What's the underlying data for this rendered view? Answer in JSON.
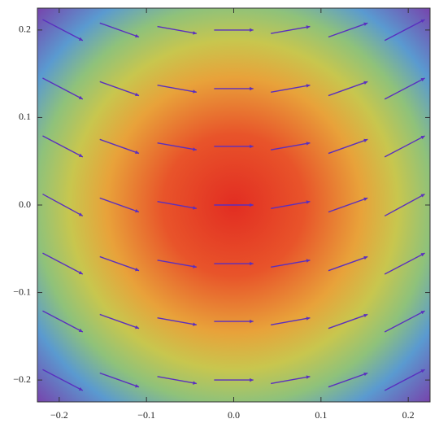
{
  "chart_data": {
    "type": "vector-field",
    "x": [
      -0.196,
      -0.131,
      -0.065,
      0,
      0.065,
      0.131,
      0.196
    ],
    "y": [
      0.2,
      0.133,
      0.067,
      0,
      -0.067,
      -0.133,
      -0.2
    ],
    "u": [
      [
        0.046,
        0.045,
        0.045,
        0.045,
        0.045,
        0.045,
        0.046
      ],
      [
        0.046,
        0.045,
        0.045,
        0.045,
        0.045,
        0.045,
        0.046
      ],
      [
        0.046,
        0.045,
        0.045,
        0.045,
        0.045,
        0.045,
        0.046
      ],
      [
        0.046,
        0.045,
        0.045,
        0.045,
        0.045,
        0.045,
        0.046
      ],
      [
        0.046,
        0.045,
        0.045,
        0.045,
        0.045,
        0.045,
        0.046
      ],
      [
        0.046,
        0.045,
        0.045,
        0.045,
        0.045,
        0.045,
        0.046
      ],
      [
        0.046,
        0.045,
        0.045,
        0.045,
        0.045,
        0.045,
        0.046
      ]
    ],
    "v": [
      [
        -0.024,
        -0.016,
        -0.008,
        0,
        0.008,
        0.016,
        0.024
      ],
      [
        -0.024,
        -0.016,
        -0.008,
        0,
        0.008,
        0.016,
        0.024
      ],
      [
        -0.024,
        -0.016,
        -0.008,
        0,
        0.008,
        0.016,
        0.024
      ],
      [
        -0.025,
        -0.016,
        -0.008,
        0,
        0.008,
        0.016,
        0.025
      ],
      [
        -0.024,
        -0.016,
        -0.008,
        0,
        0.008,
        0.016,
        0.024
      ],
      [
        -0.024,
        -0.016,
        -0.008,
        0,
        0.008,
        0.016,
        0.024
      ],
      [
        -0.024,
        -0.016,
        -0.008,
        0,
        0.008,
        0.016,
        0.024
      ]
    ],
    "color": "#5a2fbf",
    "xlim": [
      -0.225,
      0.225
    ],
    "ylim": [
      -0.225,
      0.225
    ],
    "xticks": [
      {
        "value": -0.2,
        "label": "−0.2"
      },
      {
        "value": -0.1,
        "label": "−0.1"
      },
      {
        "value": 0,
        "label": "0.0"
      },
      0.1,
      0.2
    ],
    "yticks": [
      {
        "value": -0.2,
        "label": "−0.2"
      },
      {
        "value": -0.1,
        "label": "−0.1"
      },
      {
        "value": 0,
        "label": "0.0"
      },
      0.1,
      0.2
    ]
  }
}
